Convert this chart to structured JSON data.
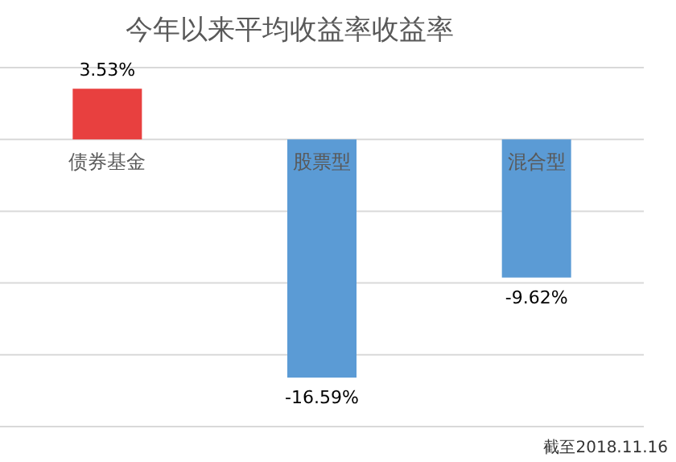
{
  "chart_data": {
    "type": "bar",
    "title": "今年以来平均收益率收益率",
    "categories": [
      "债券基金",
      "股票型",
      "混合型"
    ],
    "values": [
      3.53,
      -16.59,
      -9.62
    ],
    "colors": [
      "#e8403f",
      "#5b9bd5",
      "#5b9bd5"
    ],
    "value_labels": [
      "3.53%",
      "-16.59%",
      "-9.62%"
    ],
    "ylim": [
      -20,
      5
    ],
    "yticks": [
      {
        "value": 5,
        "label": null
      },
      {
        "value": 0,
        "label": null
      },
      {
        "value": -5,
        "label": null
      },
      {
        "value": -10,
        "label": null
      },
      {
        "value": -15,
        "label": null
      },
      {
        "value": -20,
        "label": null
      }
    ],
    "tick_labels": "x",
    "grid": "y",
    "annotations": [
      "截至2018.11.16"
    ]
  }
}
